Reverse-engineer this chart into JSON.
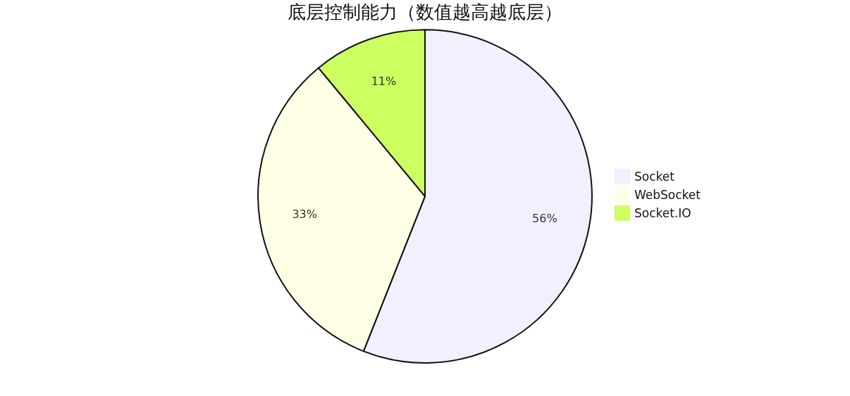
{
  "chart_data": {
    "type": "pie",
    "title": "底层控制能力（数值越高越底层）",
    "categories": [
      "Socket",
      "WebSocket",
      "Socket.IO"
    ],
    "values": [
      56,
      33,
      11
    ],
    "colors": [
      "#f0f0ff",
      "#ffffe6",
      "#cdff60"
    ],
    "value_labels": [
      "56%",
      "33%",
      "11%"
    ],
    "legend": "right"
  }
}
